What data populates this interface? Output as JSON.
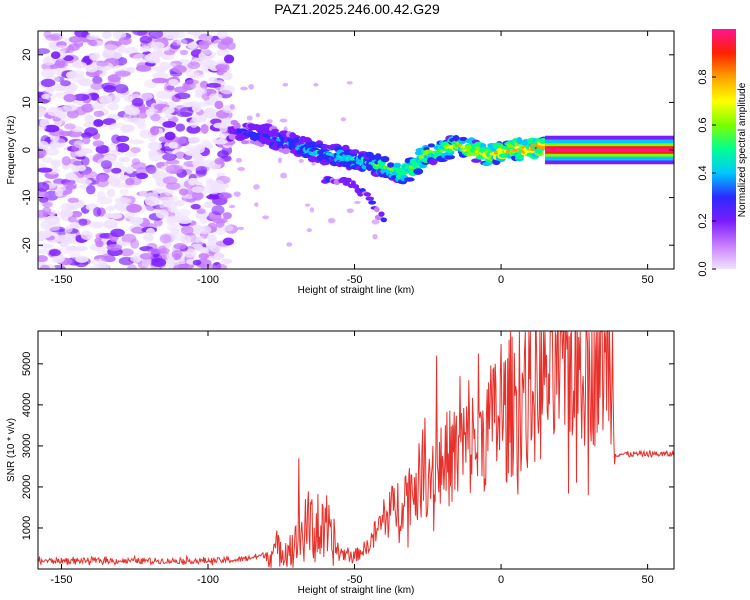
{
  "title": "PAZ1.2025.246.00.42.G29",
  "colors": {
    "snr_line": "#e8302a",
    "colormap": [
      "#f0e2ff",
      "#c77dff",
      "#7a1cff",
      "#2a2aff",
      "#00c8ff",
      "#00ff90",
      "#7dff00",
      "#ffff00",
      "#ffa000",
      "#ff2000",
      "#ff1493"
    ]
  },
  "chart_data": [
    {
      "type": "heatmap",
      "xlabel": "Height of straight line (km)",
      "ylabel": "Frequency (Hz)",
      "xlim": [
        -158,
        59
      ],
      "ylim": [
        -25,
        25
      ],
      "xticks": [
        -150,
        -100,
        -50,
        0,
        50
      ],
      "yticks": [
        -20,
        -10,
        0,
        10,
        20
      ],
      "colorbar": {
        "label": "Normalized spectral amplitude",
        "range": [
          0,
          1
        ],
        "ticks": [
          "0.0",
          "0.2",
          "0.4",
          "0.6",
          "0.8"
        ],
        "tick_values": [
          0.0,
          0.2,
          0.4,
          0.6,
          0.8
        ]
      },
      "noise_region_x": [
        -158,
        -92
      ],
      "ridge": [
        {
          "x": -92,
          "y": 4
        },
        {
          "x": -80,
          "y": 3
        },
        {
          "x": -65,
          "y": 0
        },
        {
          "x": -50,
          "y": -2
        },
        {
          "x": -40,
          "y": -3.5
        },
        {
          "x": -33,
          "y": -5
        },
        {
          "x": -25,
          "y": -1
        },
        {
          "x": -15,
          "y": 1
        },
        {
          "x": -5,
          "y": -1
        },
        {
          "x": 5,
          "y": 0
        },
        {
          "x": 15,
          "y": 0.5
        },
        {
          "x": 59,
          "y": 0
        }
      ],
      "secondary_branch": [
        {
          "x": -60,
          "y": -6
        },
        {
          "x": -52,
          "y": -7
        },
        {
          "x": -45,
          "y": -10
        },
        {
          "x": -40,
          "y": -15
        }
      ],
      "tone_region_x": [
        15,
        59
      ],
      "tone_freq": 0
    },
    {
      "type": "line",
      "xlabel": "Height of straight line (km)",
      "ylabel": "SNR (10 * v/v)",
      "xlim": [
        -158,
        59
      ],
      "ylim": [
        0,
        5800
      ],
      "xticks": [
        -150,
        -100,
        -50,
        0,
        50
      ],
      "yticks": [
        1000,
        2000,
        3000,
        4000,
        5000
      ],
      "series": [
        {
          "points": [
            {
              "x": -158,
              "y": 200
            },
            {
              "x": -100,
              "y": 200
            },
            {
              "x": -90,
              "y": 220
            },
            {
              "x": -80,
              "y": 350
            },
            {
              "x": -70,
              "y": 600
            },
            {
              "x": -65,
              "y": 1100
            },
            {
              "x": -60,
              "y": 800
            },
            {
              "x": -55,
              "y": 400
            },
            {
              "x": -50,
              "y": 300
            },
            {
              "x": -45,
              "y": 600
            },
            {
              "x": -40,
              "y": 1200
            },
            {
              "x": -30,
              "y": 2000
            },
            {
              "x": -20,
              "y": 2600
            },
            {
              "x": -10,
              "y": 3100
            },
            {
              "x": 0,
              "y": 3700
            },
            {
              "x": 10,
              "y": 4400
            },
            {
              "x": 20,
              "y": 5000
            },
            {
              "x": 30,
              "y": 5300
            },
            {
              "x": 38,
              "y": 5500
            },
            {
              "x": 39,
              "y": 2800
            },
            {
              "x": 59,
              "y": 2800
            }
          ],
          "spikes": [
            {
              "x": -69,
              "y": 2700
            },
            {
              "x": -22,
              "y": 5200
            },
            {
              "x": -14,
              "y": 4700
            },
            {
              "x": -11,
              "y": 4600
            },
            {
              "x": -2,
              "y": 5000
            }
          ]
        }
      ]
    }
  ]
}
